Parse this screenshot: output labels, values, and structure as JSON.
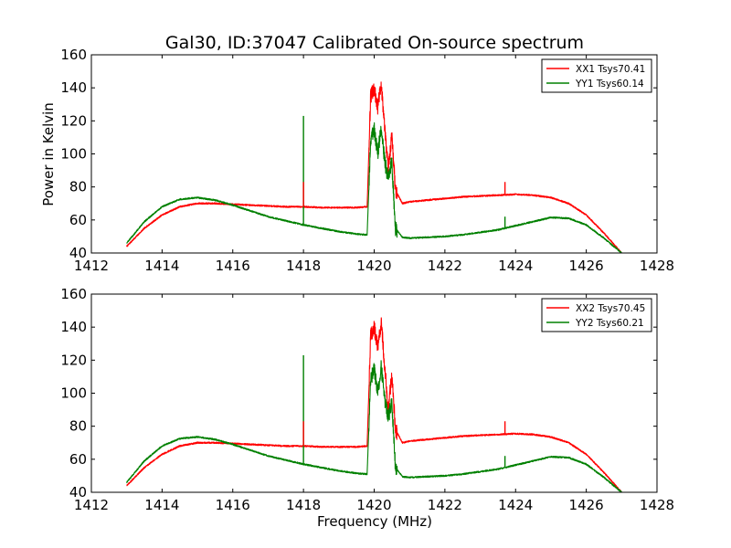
{
  "figure": {
    "title": "Gal30, ID:37047 Calibrated On-source spectrum",
    "xlabel": "Frequency (MHz)",
    "ylabel": "Power in Kelvin"
  },
  "colors": {
    "xx": "#ff0000",
    "yy": "#008000"
  },
  "chart_data": [
    {
      "type": "line",
      "title": "Gal30, ID:37047 Calibrated On-source spectrum",
      "xlabel": "",
      "ylabel": "Power in Kelvin",
      "xlim": [
        1412,
        1428
      ],
      "ylim": [
        40,
        160
      ],
      "xticks": [
        "1412",
        "1414",
        "1416",
        "1418",
        "1420",
        "1422",
        "1424",
        "1426",
        "1428"
      ],
      "yticks": [
        "40",
        "60",
        "80",
        "100",
        "120",
        "140",
        "160"
      ],
      "legend_position": "top-right",
      "grid": false,
      "series": [
        {
          "name": "XX1 Tsys70.41",
          "color": "#ff0000",
          "x": [
            1413.0,
            1413.5,
            1414.0,
            1414.5,
            1415.0,
            1415.5,
            1416.0,
            1416.5,
            1417.0,
            1417.5,
            1418.0,
            1418.5,
            1419.0,
            1419.5,
            1419.8,
            1419.9,
            1420.0,
            1420.1,
            1420.2,
            1420.3,
            1420.4,
            1420.5,
            1420.6,
            1420.8,
            1421.0,
            1421.5,
            1422.0,
            1422.5,
            1423.0,
            1423.5,
            1424.0,
            1424.5,
            1425.0,
            1425.5,
            1426.0,
            1426.5,
            1427.0
          ],
          "y": [
            44,
            55,
            63,
            68,
            70,
            70,
            69.5,
            69,
            68.5,
            68,
            68,
            67.5,
            67.5,
            67.5,
            68,
            135,
            140,
            128,
            143,
            115,
            90,
            112,
            78,
            70,
            71,
            72,
            73,
            74,
            74.5,
            75,
            75.5,
            75,
            73.5,
            70,
            63,
            52,
            40
          ]
        },
        {
          "name": "YY1 Tsys60.14",
          "color": "#008000",
          "x": [
            1413.0,
            1413.5,
            1414.0,
            1414.5,
            1415.0,
            1415.5,
            1416.0,
            1416.5,
            1417.0,
            1417.5,
            1418.0,
            1418.5,
            1419.0,
            1419.5,
            1419.8,
            1419.9,
            1420.0,
            1420.1,
            1420.2,
            1420.3,
            1420.4,
            1420.5,
            1420.6,
            1420.8,
            1421.0,
            1421.5,
            1422.0,
            1422.5,
            1423.0,
            1423.5,
            1424.0,
            1424.5,
            1425.0,
            1425.5,
            1426.0,
            1426.5,
            1427.0
          ],
          "y": [
            46,
            59,
            68,
            72.5,
            73.5,
            72,
            69,
            65.5,
            62,
            59.5,
            57,
            55,
            53,
            51.5,
            51,
            108,
            115,
            100,
            116,
            95,
            85,
            95,
            55,
            49.5,
            49,
            49.5,
            50,
            51,
            52.5,
            54,
            56.5,
            59,
            61.5,
            61,
            57,
            49,
            40
          ]
        }
      ],
      "spikes": [
        {
          "series": "YY1 Tsys60.14",
          "x": 1418.0,
          "y": 123
        },
        {
          "series": "XX1 Tsys70.41",
          "x": 1418.0,
          "y": 83
        },
        {
          "series": "XX1 Tsys70.41",
          "x": 1423.7,
          "y": 83
        },
        {
          "series": "YY1 Tsys60.14",
          "x": 1423.7,
          "y": 62
        }
      ]
    },
    {
      "type": "line",
      "title": "",
      "xlabel": "Frequency (MHz)",
      "ylabel": "",
      "xlim": [
        1412,
        1428
      ],
      "ylim": [
        40,
        160
      ],
      "xticks": [
        "1412",
        "1414",
        "1416",
        "1418",
        "1420",
        "1422",
        "1424",
        "1426",
        "1428"
      ],
      "yticks": [
        "40",
        "60",
        "80",
        "100",
        "120",
        "140",
        "160"
      ],
      "legend_position": "top-right",
      "grid": false,
      "series": [
        {
          "name": "XX2 Tsys70.45",
          "color": "#ff0000",
          "x": [
            1413.0,
            1413.5,
            1414.0,
            1414.5,
            1415.0,
            1415.5,
            1416.0,
            1416.5,
            1417.0,
            1417.5,
            1418.0,
            1418.5,
            1419.0,
            1419.5,
            1419.8,
            1419.9,
            1420.0,
            1420.1,
            1420.2,
            1420.3,
            1420.4,
            1420.5,
            1420.6,
            1420.8,
            1421.0,
            1421.5,
            1422.0,
            1422.5,
            1423.0,
            1423.5,
            1424.0,
            1424.5,
            1425.0,
            1425.5,
            1426.0,
            1426.5,
            1427.0
          ],
          "y": [
            44,
            55,
            63,
            68,
            70,
            70,
            69.5,
            69,
            68.5,
            68,
            68,
            67.5,
            67.5,
            67.5,
            68,
            135,
            140,
            128,
            143,
            115,
            90,
            112,
            78,
            70,
            71,
            72,
            73,
            74,
            74.5,
            75,
            75.5,
            75,
            73.5,
            70,
            63,
            52,
            40
          ]
        },
        {
          "name": "YY2 Tsys60.21",
          "color": "#008000",
          "x": [
            1413.0,
            1413.5,
            1414.0,
            1414.5,
            1415.0,
            1415.5,
            1416.0,
            1416.5,
            1417.0,
            1417.5,
            1418.0,
            1418.5,
            1419.0,
            1419.5,
            1419.8,
            1419.9,
            1420.0,
            1420.1,
            1420.2,
            1420.3,
            1420.4,
            1420.5,
            1420.6,
            1420.8,
            1421.0,
            1421.5,
            1422.0,
            1422.5,
            1423.0,
            1423.5,
            1424.0,
            1424.5,
            1425.0,
            1425.5,
            1426.0,
            1426.5,
            1427.0
          ],
          "y": [
            46,
            59,
            68,
            72.5,
            73.5,
            72,
            69,
            65.5,
            62,
            59.5,
            57,
            55,
            53,
            51.5,
            51,
            108,
            115,
            100,
            116,
            95,
            85,
            95,
            55,
            49.5,
            49,
            49.5,
            50,
            51,
            52.5,
            54,
            56.5,
            59,
            61.5,
            61,
            57,
            49,
            40
          ]
        }
      ],
      "spikes": [
        {
          "series": "YY2 Tsys60.21",
          "x": 1418.0,
          "y": 123
        },
        {
          "series": "XX2 Tsys70.45",
          "x": 1418.0,
          "y": 83
        },
        {
          "series": "XX2 Tsys70.45",
          "x": 1423.7,
          "y": 83
        },
        {
          "series": "YY2 Tsys60.21",
          "x": 1423.7,
          "y": 62
        }
      ]
    }
  ]
}
